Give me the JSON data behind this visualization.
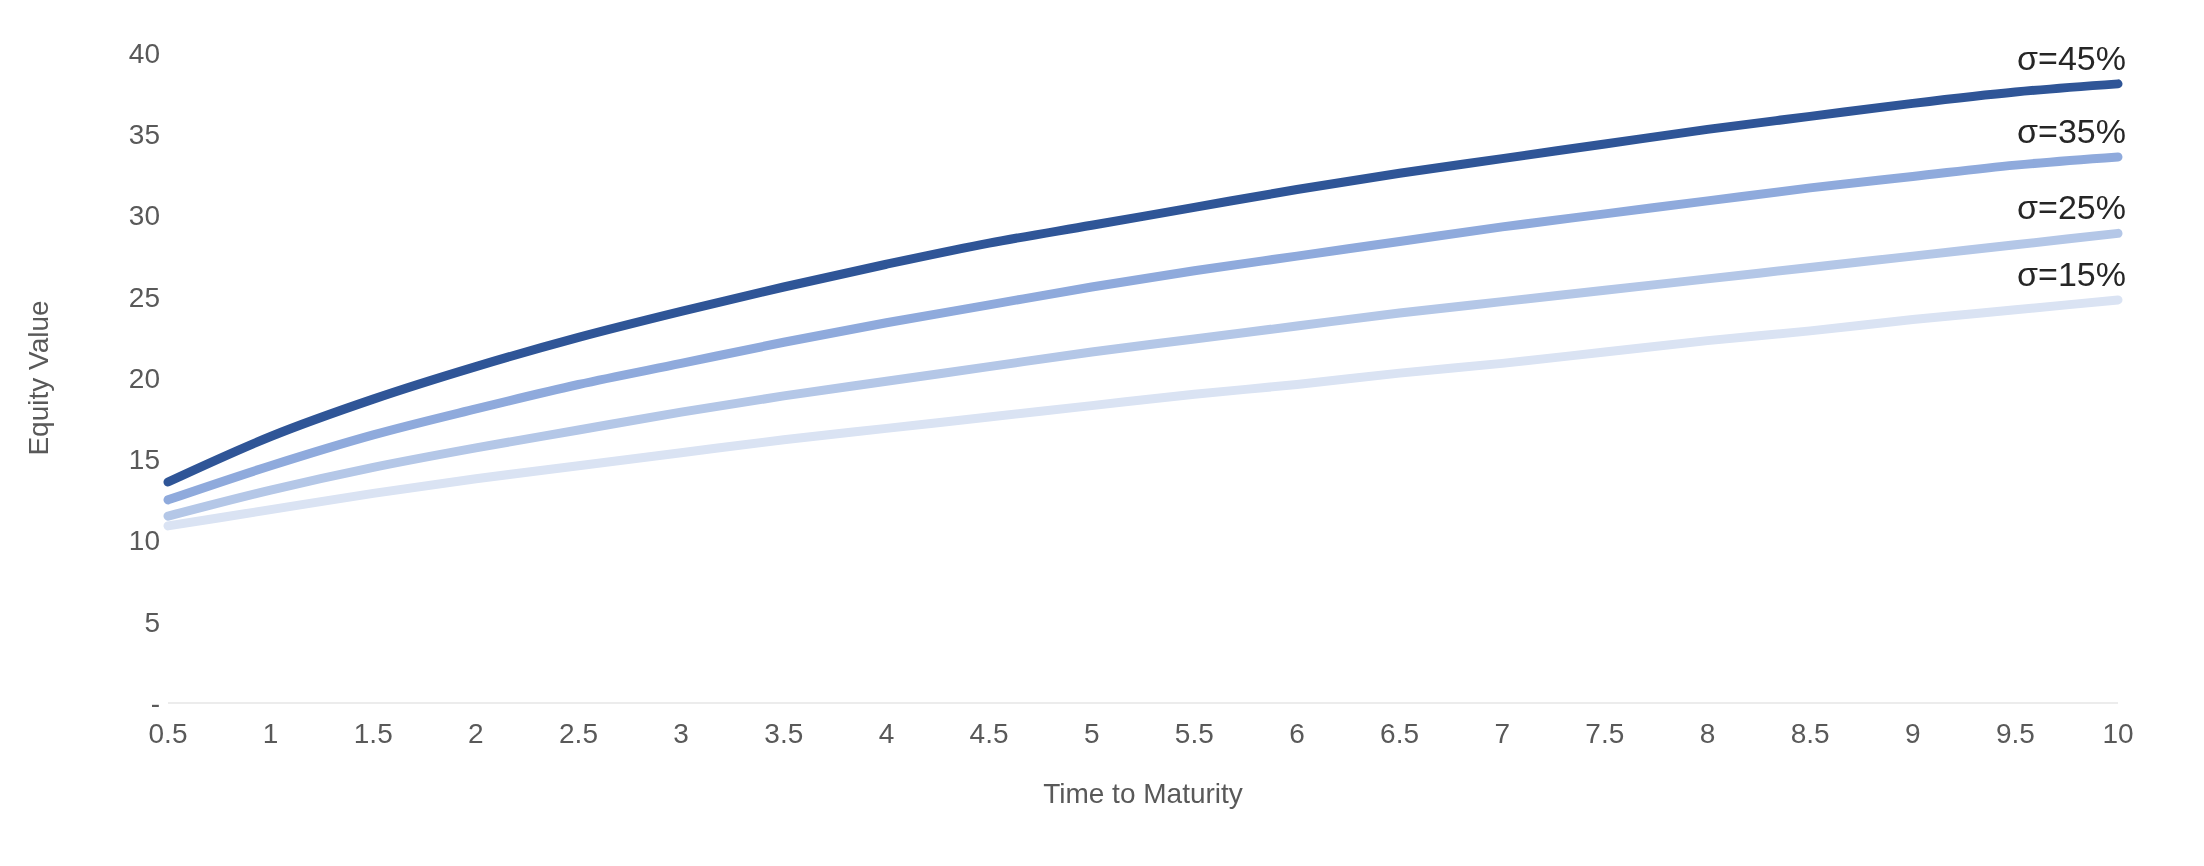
{
  "chart_data": {
    "type": "line",
    "xlabel": "Time to Maturity",
    "ylabel": "Equity Value",
    "categories": [
      "0.5",
      "1",
      "1.5",
      "2",
      "2.5",
      "3",
      "3.5",
      "4",
      "4.5",
      "5",
      "5.5",
      "6",
      "6.5",
      "7",
      "7.5",
      "8",
      "8.5",
      "9",
      "9.5",
      "10"
    ],
    "series": [
      {
        "name": "σ=45%",
        "color": "#2f5597",
        "values": [
          13.6,
          16.4,
          18.7,
          20.7,
          22.5,
          24.1,
          25.6,
          27.0,
          28.3,
          29.4,
          30.5,
          31.6,
          32.6,
          33.5,
          34.4,
          35.3,
          36.1,
          36.9,
          37.6,
          38.1
        ]
      },
      {
        "name": "σ=35%",
        "color": "#8faadc",
        "values": [
          12.5,
          14.6,
          16.5,
          18.1,
          19.6,
          20.9,
          22.2,
          23.4,
          24.5,
          25.6,
          26.6,
          27.5,
          28.4,
          29.3,
          30.1,
          30.9,
          31.7,
          32.4,
          33.1,
          33.6
        ]
      },
      {
        "name": "σ=25%",
        "color": "#b4c7e7",
        "values": [
          11.5,
          13.1,
          14.5,
          15.7,
          16.8,
          17.9,
          18.9,
          19.8,
          20.7,
          21.6,
          22.4,
          23.2,
          24.0,
          24.7,
          25.4,
          26.1,
          26.8,
          27.5,
          28.2,
          28.9
        ]
      },
      {
        "name": "σ=15%",
        "color": "#dae3f3",
        "values": [
          10.9,
          11.9,
          12.9,
          13.8,
          14.6,
          15.4,
          16.2,
          16.9,
          17.6,
          18.3,
          19.0,
          19.6,
          20.3,
          20.9,
          21.6,
          22.3,
          22.9,
          23.6,
          24.2,
          24.8
        ]
      }
    ],
    "ylim": [
      0,
      40
    ],
    "yticks": [
      {
        "value": 0,
        "label": "-"
      },
      5,
      10,
      15,
      20,
      25,
      30,
      35,
      40
    ],
    "grid": false,
    "legend": false,
    "marker": "none",
    "line_style": "solid"
  }
}
